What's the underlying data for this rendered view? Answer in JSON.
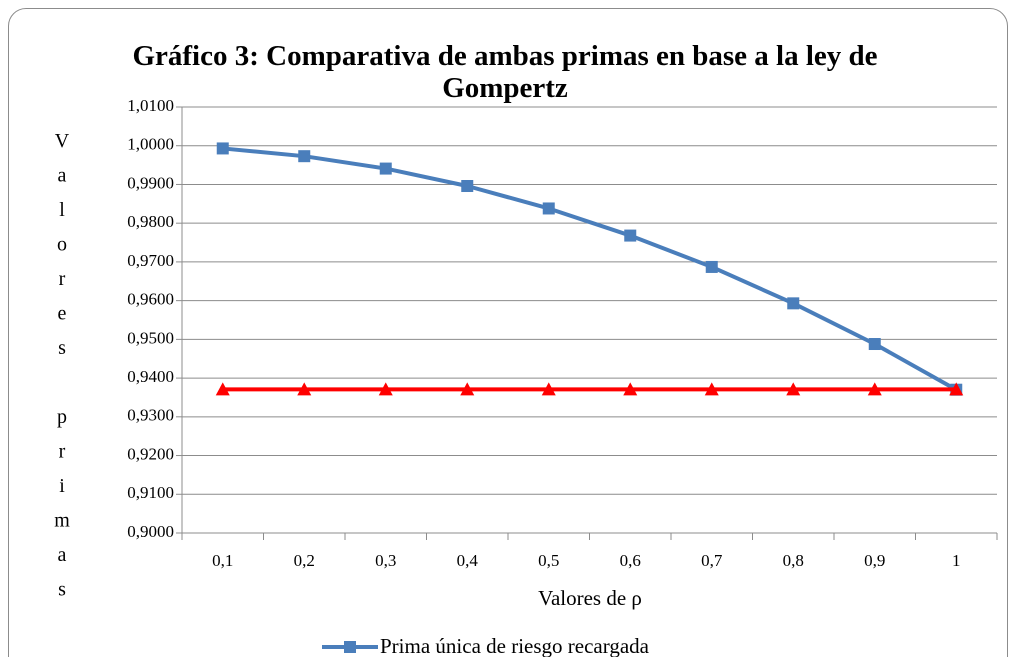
{
  "chart_data": {
    "type": "line",
    "title": "Gráfico 3: Comparativa de ambas primas en base a la ley de Gompertz",
    "x_label": "Valores de ρ",
    "y_label": "Valores primas",
    "categories": [
      "0,1",
      "0,2",
      "0,3",
      "0,4",
      "0,5",
      "0,6",
      "0,7",
      "0,8",
      "0,9",
      "1"
    ],
    "series": [
      {
        "name": "Prima única de riesgo recargada",
        "color": "#4a7ebb",
        "marker": "square",
        "values": [
          0.9993,
          0.9973,
          0.9941,
          0.9896,
          0.9838,
          0.9768,
          0.9687,
          0.9593,
          0.9488,
          0.937
        ]
      },
      {
        "color": "#ff0000",
        "marker": "triangle",
        "values": [
          0.9371,
          0.9371,
          0.9371,
          0.9371,
          0.9371,
          0.9371,
          0.9371,
          0.9371,
          0.9371,
          0.9371
        ]
      }
    ],
    "ylim": [
      0.9,
      1.01
    ],
    "yticks": [
      {
        "value": 0.9,
        "label": "0,9000"
      },
      {
        "value": 0.91,
        "label": "0,9100"
      },
      {
        "value": 0.92,
        "label": "0,9200"
      },
      {
        "value": 0.93,
        "label": "0,9300"
      },
      {
        "value": 0.94,
        "label": "0,9400"
      },
      {
        "value": 0.95,
        "label": "0,9500"
      },
      {
        "value": 0.96,
        "label": "0,9600"
      },
      {
        "value": 0.97,
        "label": "0,9700"
      },
      {
        "value": 0.98,
        "label": "0,9800"
      },
      {
        "value": 0.99,
        "label": "0,9900"
      },
      {
        "value": 1.0,
        "label": "1,0000"
      },
      {
        "value": 1.01,
        "label": "1,0100"
      }
    ],
    "grid": true,
    "legend": "bottom"
  }
}
